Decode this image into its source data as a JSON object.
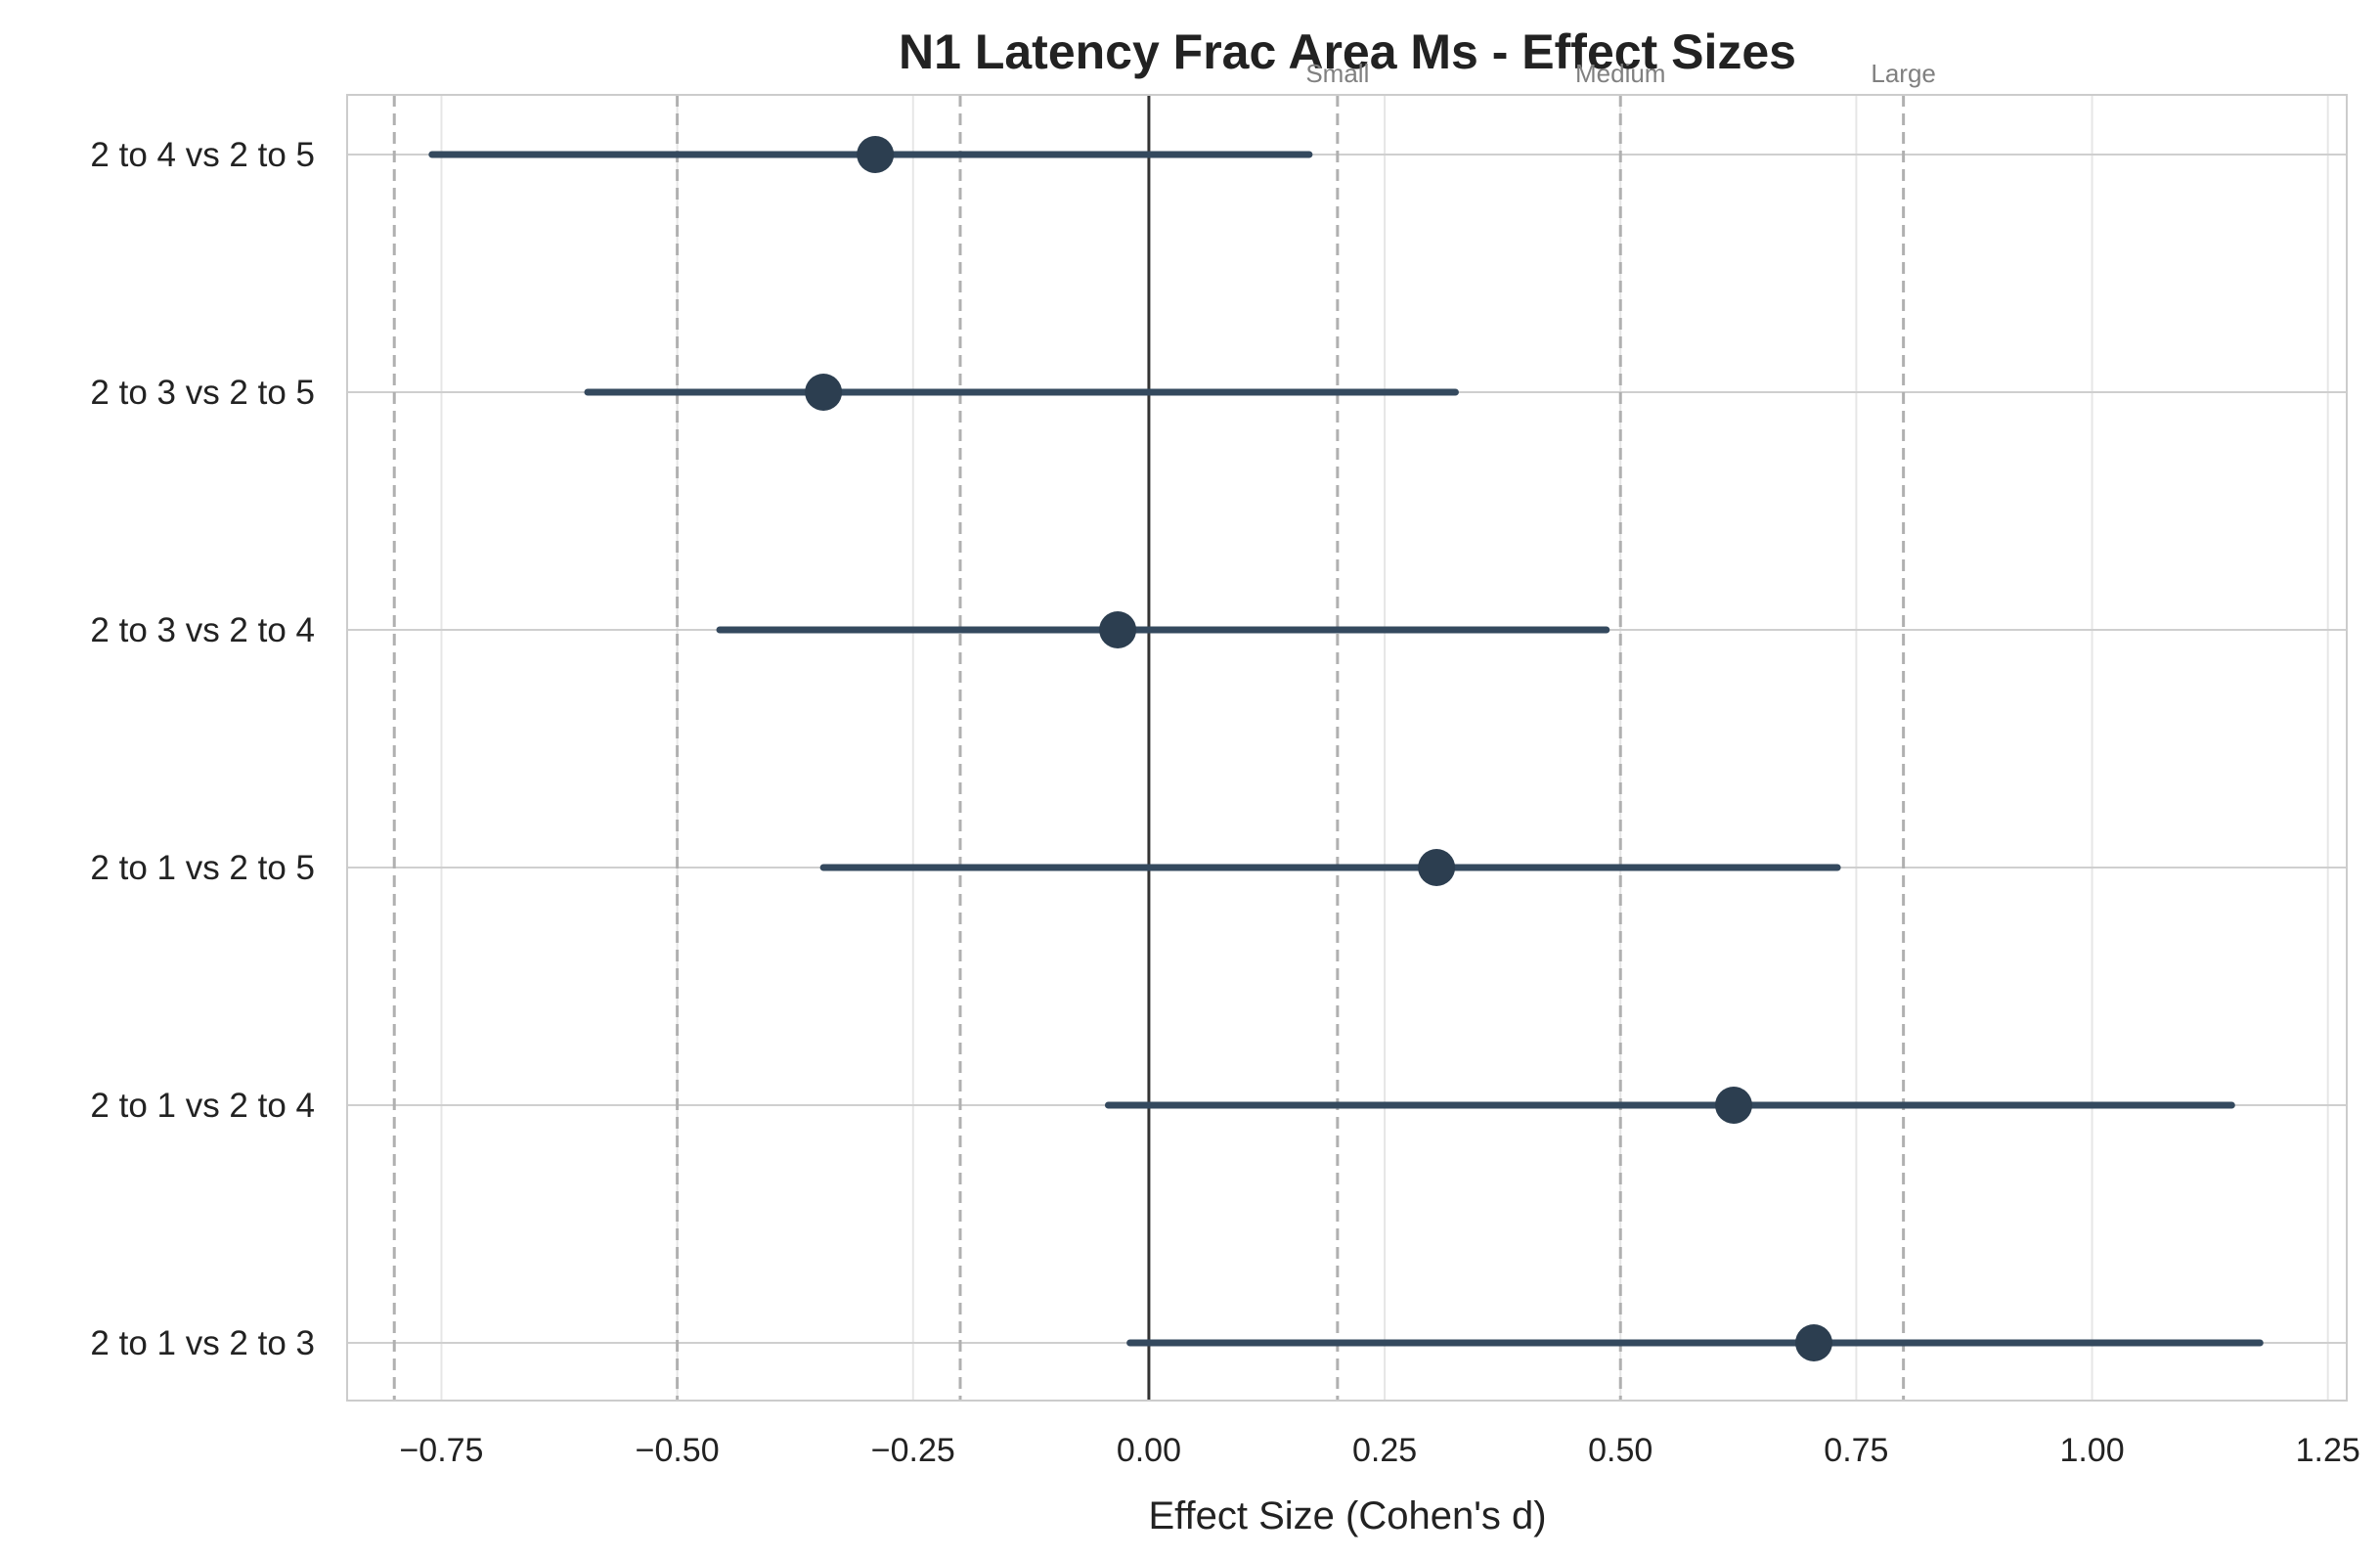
{
  "chart_data": {
    "type": "forest",
    "title": "N1 Latency Frac Area Ms - Effect Sizes",
    "xlabel": "Effect Size (Cohen's d)",
    "ylabel": "",
    "xlim": [
      -0.85,
      1.27
    ],
    "xticks": [
      -0.75,
      -0.5,
      -0.25,
      0.0,
      0.25,
      0.5,
      0.75,
      1.0,
      1.25
    ],
    "xtick_labels": [
      "−0.75",
      "−0.50",
      "−0.25",
      "0.00",
      "0.25",
      "0.50",
      "0.75",
      "1.00",
      "1.25"
    ],
    "grid": true,
    "reference_line": 0.0,
    "thresholds": [
      {
        "value": -0.8,
        "label": ""
      },
      {
        "value": -0.5,
        "label": ""
      },
      {
        "value": -0.2,
        "label": ""
      },
      {
        "value": 0.2,
        "label": "Small"
      },
      {
        "value": 0.5,
        "label": "Medium"
      },
      {
        "value": 0.8,
        "label": "Large"
      }
    ],
    "comparisons": [
      {
        "label": "2 to 4 vs 2 to 5",
        "d": -0.29,
        "ci_low": -0.76,
        "ci_high": 0.17
      },
      {
        "label": "2 to 3 vs 2 to 5",
        "d": -0.345,
        "ci_low": -0.595,
        "ci_high": 0.325
      },
      {
        "label": "2 to 3 vs 2 to 4",
        "d": -0.033,
        "ci_low": -0.455,
        "ci_high": 0.485
      },
      {
        "label": "2 to 1 vs 2 to 5",
        "d": 0.305,
        "ci_low": -0.345,
        "ci_high": 0.73
      },
      {
        "label": "2 to 1 vs 2 to 4",
        "d": 0.62,
        "ci_low": -0.043,
        "ci_high": 1.148
      },
      {
        "label": "2 to 1 vs 2 to 3",
        "d": 0.705,
        "ci_low": -0.02,
        "ci_high": 1.178
      }
    ],
    "colors": {
      "point": "#2c3e50",
      "ci_line": "#34495e",
      "threshold": "#b0b0b0",
      "zero_line": "#333333",
      "grid": "#e6e6e6",
      "frame": "#cccccc"
    }
  }
}
